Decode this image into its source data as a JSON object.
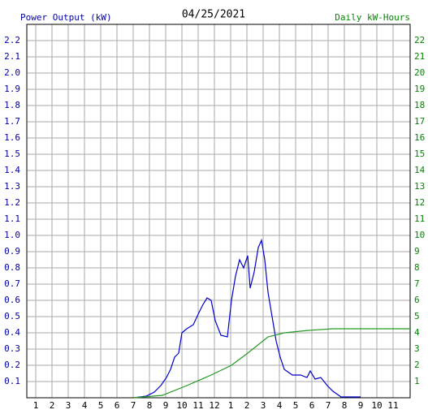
{
  "chart_data": {
    "type": "line",
    "title": "04/25/2021",
    "ylabel": "Power Output (kW)",
    "y2label": "Daily kW-Hours",
    "ylabel_color": "#0000aa",
    "y2label_color": "#008800",
    "grid": true,
    "xlim": [
      0.45,
      24.05
    ],
    "xticks": [
      1,
      2,
      3,
      4,
      5,
      6,
      7,
      8,
      9,
      10,
      11,
      12,
      {
        "value": 13,
        "label": "1"
      },
      {
        "value": 14,
        "label": "2"
      },
      {
        "value": 15,
        "label": "3"
      },
      {
        "value": 16,
        "label": "4"
      },
      {
        "value": 17,
        "label": "5"
      },
      {
        "value": 18,
        "label": "6"
      },
      {
        "value": 19,
        "label": "7"
      },
      {
        "value": 20,
        "label": "8"
      },
      {
        "value": 21,
        "label": "9"
      },
      {
        "value": 22,
        "label": "10"
      },
      {
        "value": 23,
        "label": "11"
      }
    ],
    "ylim": [
      0,
      2.3
    ],
    "yticks": [
      0.1,
      0.2,
      0.3,
      0.4,
      0.5,
      0.6,
      0.7,
      0.8,
      0.9,
      {
        "value": 1,
        "label": "1.0"
      },
      1.1,
      1.2,
      1.3,
      1.4,
      1.5,
      1.6,
      1.7,
      1.8,
      1.9,
      {
        "value": 2,
        "label": "2.0"
      },
      2.1,
      2.2
    ],
    "y2lim": [
      0,
      23
    ],
    "y2ticks": [
      1,
      2,
      3,
      4,
      5,
      6,
      7,
      8,
      9,
      10,
      11,
      12,
      13,
      14,
      15,
      16,
      17,
      18,
      19,
      20,
      21,
      22
    ],
    "series": [
      {
        "name": "Power Output (kW)",
        "color": "#0000cc",
        "axis": "y",
        "x": [
          7.05,
          7.8,
          8.3,
          8.7,
          9.05,
          9.3,
          9.55,
          9.8,
          10.0,
          10.3,
          10.7,
          11.05,
          11.3,
          11.55,
          11.8,
          12.05,
          12.4,
          12.8,
          13.05,
          13.3,
          13.55,
          13.8,
          14.05,
          14.2,
          14.45,
          14.7,
          14.9,
          15.1,
          15.3,
          15.55,
          15.8,
          16.05,
          16.3,
          16.8,
          17.3,
          17.7,
          17.9,
          18.2,
          18.55,
          18.95,
          19.3,
          19.8,
          21.0
        ],
        "values": [
          0,
          0.01,
          0.035,
          0.075,
          0.125,
          0.175,
          0.25,
          0.275,
          0.4,
          0.425,
          0.45,
          0.525,
          0.575,
          0.615,
          0.6,
          0.475,
          0.385,
          0.375,
          0.6,
          0.75,
          0.85,
          0.8,
          0.875,
          0.675,
          0.775,
          0.925,
          0.97,
          0.85,
          0.65,
          0.5,
          0.35,
          0.25,
          0.175,
          0.14,
          0.14,
          0.125,
          0.165,
          0.115,
          0.125,
          0.075,
          0.04,
          0.005,
          0.005
        ]
      },
      {
        "name": "Daily kW-Hours",
        "color": "#229922",
        "axis": "y2",
        "x": [
          7.05,
          8.8,
          10.3,
          11.8,
          13.05,
          14.05,
          15.3,
          16.3,
          17.8,
          19.3,
          24.05
        ],
        "values": [
          0,
          0.15,
          0.75,
          1.4,
          2.0,
          2.75,
          3.75,
          4.0,
          4.15,
          4.25,
          4.25
        ]
      }
    ]
  }
}
